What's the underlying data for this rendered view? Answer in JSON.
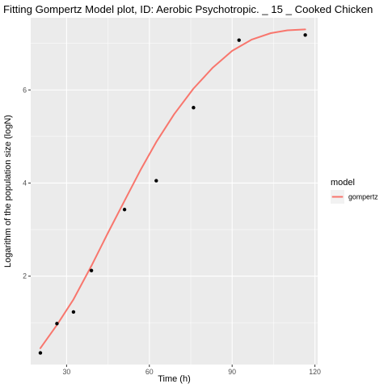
{
  "chart_data": {
    "type": "line",
    "title": "Fitting Gompertz Model plot, ID: Aerobic Psychotropic. _ 15 _ Cooked Chicken",
    "xlabel": "Time (h)",
    "ylabel": "Logarithm of the population size (logN)",
    "xlim": [
      17,
      121
    ],
    "ylim": [
      0.1,
      7.55
    ],
    "x_ticks": [
      30,
      60,
      90,
      120
    ],
    "x_tick_labels": [
      "30",
      "60",
      "90",
      "120"
    ],
    "y_ticks": [
      2,
      4,
      6
    ],
    "y_tick_labels": [
      "2",
      "4",
      "6"
    ],
    "grid": true,
    "legend": {
      "title": "model",
      "position": "right",
      "entries": [
        {
          "label": "gompertz",
          "color": "#F8766D"
        }
      ]
    },
    "points": {
      "x": [
        20.5,
        26.5,
        32.5,
        39.0,
        51.0,
        62.5,
        76.0,
        92.5,
        116.5
      ],
      "y": [
        0.35,
        0.98,
        1.23,
        2.12,
        3.43,
        4.05,
        5.62,
        7.07,
        7.18
      ]
    },
    "series": [
      {
        "name": "gompertz",
        "color": "#F8766D",
        "x": [
          20.5,
          26.5,
          32.5,
          39.0,
          45.0,
          51.0,
          57.0,
          62.5,
          69.0,
          76.0,
          83.0,
          90.0,
          97.0,
          104.0,
          110.0,
          116.5
        ],
        "y": [
          0.45,
          0.95,
          1.5,
          2.22,
          2.93,
          3.62,
          4.3,
          4.88,
          5.48,
          6.03,
          6.48,
          6.84,
          7.08,
          7.22,
          7.28,
          7.3
        ]
      }
    ]
  },
  "colors": {
    "panel_background": "#EBEBEB",
    "grid_major": "#FFFFFF",
    "point": "#000000",
    "line": "#F8766D",
    "legend_key_background": "#F2F2F2"
  }
}
